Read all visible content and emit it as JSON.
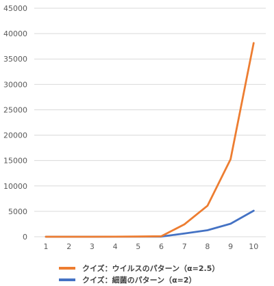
{
  "chart_data": {
    "type": "line",
    "x": [
      1,
      2,
      3,
      4,
      5,
      6,
      7,
      8,
      9,
      10
    ],
    "series": [
      {
        "name": "クイズ：ウイルスのパターン（α=2.5）",
        "color": "#ED7D31",
        "values": [
          1,
          2.5,
          6.25,
          15.6,
          39,
          97.7,
          2441,
          6104,
          15259,
          38147
        ]
      },
      {
        "name": "クイズ：細菌のパターン（α=2）",
        "color": "#4472C4",
        "values": [
          1,
          2,
          4,
          8,
          16,
          32,
          640,
          1280,
          2560,
          5120
        ]
      }
    ],
    "ylim": [
      0,
      45000
    ],
    "yticks": [
      0,
      5000,
      10000,
      15000,
      20000,
      25000,
      30000,
      35000,
      40000,
      45000
    ],
    "xticks": [
      "1",
      "2",
      "3",
      "4",
      "5",
      "6",
      "7",
      "8",
      "9",
      "10"
    ],
    "grid": true,
    "legend_position": "bottom",
    "title": "",
    "xlabel": "",
    "ylabel": ""
  }
}
